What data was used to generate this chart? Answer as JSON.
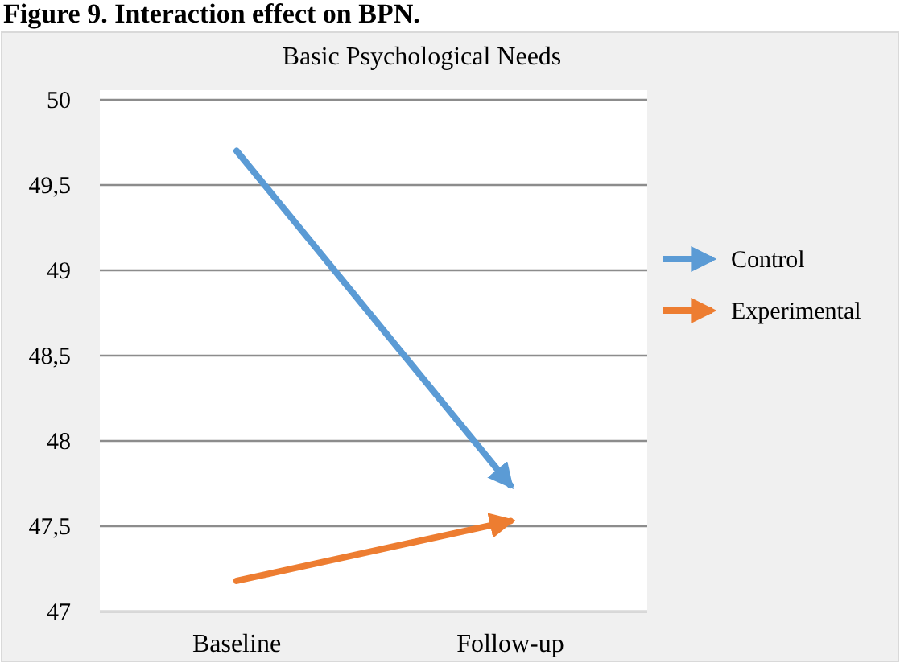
{
  "chart_data": {
    "type": "line",
    "title": "Basic Psychological Needs",
    "annotations": [
      "Figure 9. Interaction effect on BPN."
    ],
    "categories": [
      "Baseline",
      "Follow-up"
    ],
    "series": [
      {
        "name": "Control",
        "color": "#5b9bd5",
        "values": [
          49.7,
          47.74
        ]
      },
      {
        "name": "Experimental",
        "color": "#ed7d31",
        "values": [
          47.18,
          47.53
        ]
      }
    ],
    "ylim": [
      47,
      50
    ],
    "yticks": [
      47,
      {
        "value": 47.5,
        "label": "47,5"
      },
      48,
      {
        "value": 48.5,
        "label": "48,5"
      },
      49,
      {
        "value": 49.5,
        "label": "49,5"
      },
      50
    ],
    "grid": "y",
    "legend": "right",
    "marker": "none"
  }
}
